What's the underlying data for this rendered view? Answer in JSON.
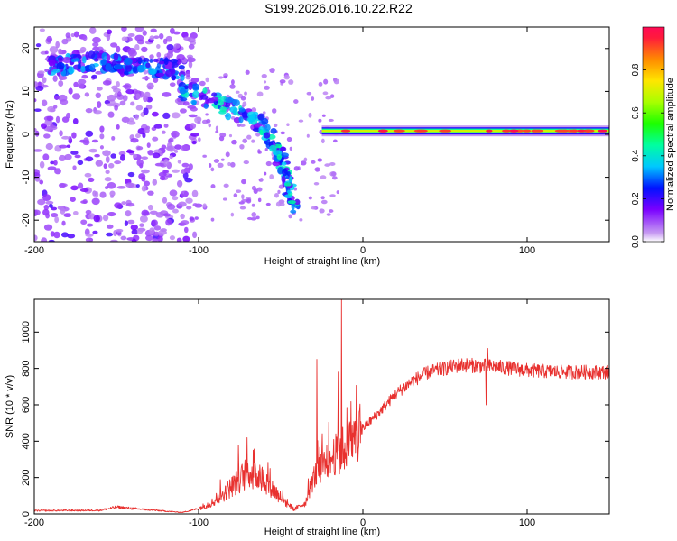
{
  "title": "S199.2026.016.10.22.R22",
  "colors": {
    "line": "#e8312f",
    "frame": "#000000"
  },
  "chart_data": [
    {
      "type": "heatmap",
      "id": "spectrogram",
      "xlabel": "Height of straight line (km)",
      "ylabel": "Frequency (Hz)",
      "xlim": [
        -200,
        150
      ],
      "ylim": [
        -25,
        25
      ],
      "xticks": [
        -200,
        -100,
        0,
        100
      ],
      "yticks": [
        -20,
        -10,
        0,
        10,
        20
      ],
      "colorbar": {
        "label": "Normalized spectral amplitude",
        "range": [
          0,
          1
        ],
        "ticks": [
          "0.0",
          "0.2",
          "0.4",
          "0.6",
          "0.8"
        ],
        "tick_values": [
          0,
          0.2,
          0.4,
          0.6,
          0.8
        ]
      },
      "features": [
        {
          "name": "steady-carrier",
          "x_from": -25,
          "x_to": 150,
          "frequency_hz": 0.8,
          "amplitude": 0.95
        },
        {
          "name": "descending-arc",
          "points": [
            [
              -110,
              10
            ],
            [
              -85,
              7
            ],
            [
              -65,
              3
            ],
            [
              -55,
              -2
            ],
            [
              -47,
              -8
            ],
            [
              -42,
              -18
            ]
          ],
          "amplitude": 0.45
        },
        {
          "name": "upper-band",
          "points": [
            [
              -190,
              16
            ],
            [
              -160,
              17
            ],
            [
              -140,
              16
            ],
            [
              -110,
              15
            ]
          ],
          "amplitude": 0.35
        }
      ]
    },
    {
      "type": "line",
      "id": "snr",
      "xlabel": "Height of straight line (km)",
      "ylabel": "SNR (10 * v/v)",
      "xlim": [
        -200,
        150
      ],
      "ylim": [
        0,
        1180
      ],
      "xticks": [
        -200,
        -100,
        0,
        100
      ],
      "yticks": [
        0,
        200,
        400,
        600,
        800,
        1000
      ],
      "envelope": {
        "x": [
          -200,
          -160,
          -150,
          -140,
          -110,
          -100,
          -90,
          -80,
          -70,
          -60,
          -50,
          -42,
          -35,
          -30,
          -25,
          -20,
          -15,
          -10,
          -5,
          0,
          10,
          20,
          30,
          40,
          60,
          80,
          100,
          120,
          150
        ],
        "y": [
          18,
          20,
          38,
          30,
          8,
          30,
          70,
          150,
          230,
          190,
          90,
          25,
          60,
          200,
          260,
          300,
          340,
          380,
          420,
          470,
          560,
          660,
          730,
          780,
          820,
          810,
          790,
          780,
          780
        ]
      },
      "spikes": [
        {
          "x": -28,
          "y": 850
        },
        {
          "x": -13,
          "y": 1180
        },
        {
          "x": -15,
          "y": 780
        },
        {
          "x": 76,
          "y": 910
        },
        {
          "x": 75,
          "y": 600
        }
      ]
    }
  ]
}
